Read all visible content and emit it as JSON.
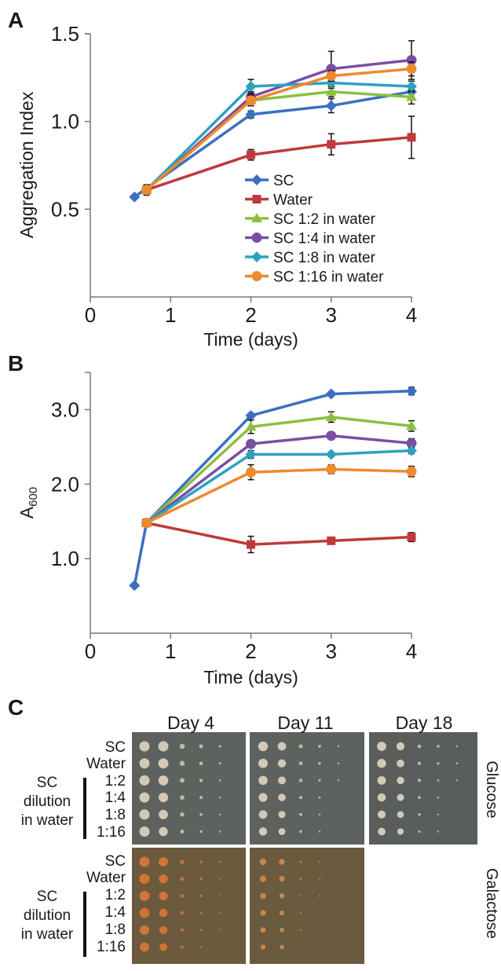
{
  "chart_data": [
    {
      "type": "line",
      "panel_label": "A",
      "xlabel": "Time (days)",
      "ylabel": "Aggregation Index",
      "xlim": [
        0,
        4
      ],
      "xticks": [
        0,
        1,
        2,
        3,
        4
      ],
      "ylim": [
        0,
        1.5
      ],
      "yticks": [
        {
          "value": 0.5,
          "label": "0.5"
        },
        {
          "value": 1.0,
          "label": "1.0"
        },
        {
          "value": 1.5,
          "label": "1.5"
        }
      ],
      "legend": "center-right",
      "series": [
        {
          "name": "SC",
          "color": "#3a70c0",
          "marker": "diamond",
          "x": [
            0.55,
            2,
            3,
            4
          ],
          "values": [
            0.57,
            1.04,
            1.09,
            1.17
          ],
          "errors": [
            null,
            0.02,
            0.04,
            0.03
          ]
        },
        {
          "name": "Water",
          "color": "#c0393b",
          "marker": "square",
          "x": [
            0.7,
            2,
            3,
            4
          ],
          "values": [
            0.61,
            0.81,
            0.87,
            0.91
          ],
          "errors": [
            0.03,
            0.03,
            0.06,
            0.12
          ]
        },
        {
          "name": "SC 1:2 in water",
          "color": "#8cbf3f",
          "marker": "triangle",
          "x": [
            0.7,
            2,
            3,
            4
          ],
          "values": [
            0.61,
            1.12,
            1.17,
            1.14
          ],
          "errors": [
            null,
            0.03,
            0.03,
            0.04
          ]
        },
        {
          "name": "SC 1:4 in water",
          "color": "#7a4fa3",
          "marker": "circle",
          "x": [
            0.7,
            2,
            3,
            4
          ],
          "values": [
            0.61,
            1.14,
            1.3,
            1.35
          ],
          "errors": [
            null,
            0.03,
            0.1,
            0.11
          ]
        },
        {
          "name": "SC 1:8 in water",
          "color": "#2fa1c0",
          "marker": "diamond",
          "x": [
            0.7,
            2,
            3,
            4
          ],
          "values": [
            0.61,
            1.2,
            1.22,
            1.2
          ],
          "errors": [
            null,
            0.04,
            0.03,
            0.03
          ]
        },
        {
          "name": "SC 1:16 in water",
          "color": "#ee8a2e",
          "marker": "circle",
          "x": [
            0.7,
            2,
            3,
            4
          ],
          "values": [
            0.61,
            1.12,
            1.26,
            1.3
          ],
          "errors": [
            null,
            0.03,
            0.03,
            0.04
          ]
        }
      ]
    },
    {
      "type": "line",
      "panel_label": "B",
      "xlabel": "Time (days)",
      "ylabel": "A",
      "ylabel_sub": "600",
      "xlim": [
        0,
        4
      ],
      "xticks": [
        0,
        1,
        2,
        3,
        4
      ],
      "ylim": [
        0,
        3.5
      ],
      "yticks": [
        {
          "value": 1.0,
          "label": "1.0"
        },
        {
          "value": 2.0,
          "label": "2.0"
        },
        {
          "value": 3.0,
          "label": "3.0"
        }
      ],
      "series": [
        {
          "name": "SC",
          "color": "#3a70c0",
          "marker": "diamond",
          "x": [
            0.55,
            0.7,
            2,
            3,
            4
          ],
          "values": [
            0.64,
            1.48,
            2.92,
            3.21,
            3.25
          ],
          "errors": [
            null,
            null,
            0.03,
            0.03,
            0.05
          ]
        },
        {
          "name": "Water",
          "color": "#c0393b",
          "marker": "square",
          "x": [
            0.7,
            2,
            3,
            4
          ],
          "values": [
            1.48,
            1.19,
            1.24,
            1.29
          ],
          "errors": [
            null,
            0.11,
            0.04,
            0.06
          ]
        },
        {
          "name": "SC 1:2 in water",
          "color": "#8cbf3f",
          "marker": "triangle",
          "x": [
            0.7,
            2,
            3,
            4
          ],
          "values": [
            1.48,
            2.77,
            2.9,
            2.78
          ],
          "errors": [
            null,
            0.09,
            0.07,
            0.07
          ]
        },
        {
          "name": "SC 1:4 in water",
          "color": "#7a4fa3",
          "marker": "circle",
          "x": [
            0.7,
            2,
            3,
            4
          ],
          "values": [
            1.48,
            2.54,
            2.65,
            2.55
          ],
          "errors": [
            null,
            0.05,
            0.03,
            0.06
          ]
        },
        {
          "name": "SC 1:8 in water",
          "color": "#2fa1c0",
          "marker": "diamond",
          "x": [
            0.7,
            2,
            3,
            4
          ],
          "values": [
            1.48,
            2.4,
            2.4,
            2.45
          ],
          "errors": [
            null,
            0.05,
            0.03,
            0.04
          ]
        },
        {
          "name": "SC 1:16 in water",
          "color": "#ee8a2e",
          "marker": "circle",
          "x": [
            0.7,
            2,
            3,
            4
          ],
          "values": [
            1.48,
            2.16,
            2.2,
            2.17
          ],
          "errors": [
            null,
            0.1,
            0.06,
            0.07
          ]
        }
      ]
    }
  ],
  "panel_c": {
    "panel_label": "C",
    "days": [
      "Day 4",
      "Day 11",
      "Day 18"
    ],
    "rows": [
      "SC",
      "Water",
      "1:2",
      "1:4",
      "1:8",
      "1:16"
    ],
    "dilution_label": [
      "SC",
      "dilution",
      "in water"
    ],
    "media": [
      "Glucose",
      "Galactose"
    ]
  }
}
